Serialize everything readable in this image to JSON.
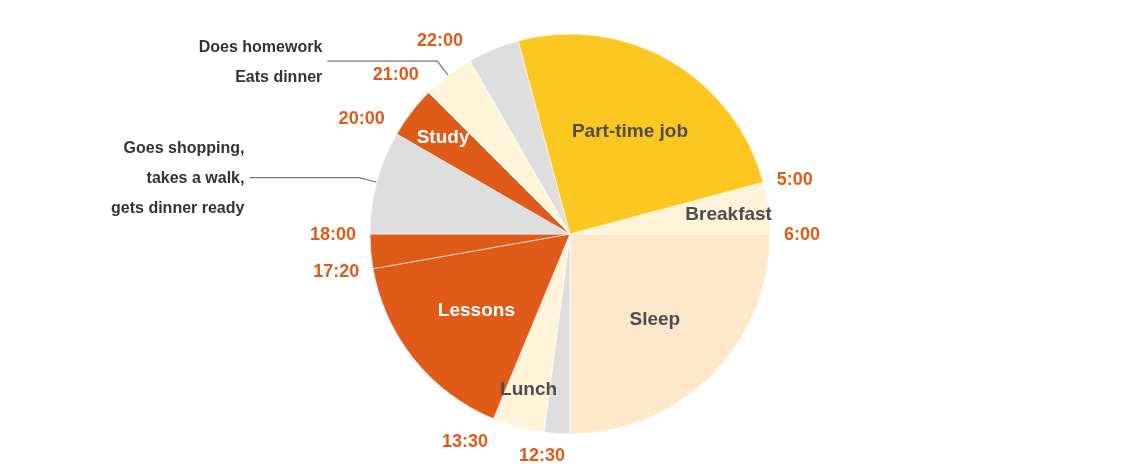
{
  "chart_data": {
    "type": "pie",
    "categories": [
      "Breakfast",
      "Sleep",
      null,
      "Lunch",
      "Lessons",
      null,
      "Goes shopping,\ntakes a walk,\ngets dinner ready",
      "Study",
      "Does homework\nEats dinner",
      null,
      "Part-time job"
    ],
    "values": [
      4.1667,
      25,
      2.0833,
      4.1667,
      15.9722,
      2.7778,
      8.3333,
      4.1667,
      4.1667,
      4.1667,
      25
    ],
    "colors": [
      "#fff4d9",
      "#fee8cc",
      "#dedede",
      "#fff4d9",
      "#e05a1a",
      "#e05a1a",
      "#dedede",
      "#e05a1a",
      "#fff4d9",
      "#dedede",
      "#fcc720"
    ],
    "annotations": [
      "5:00",
      "6:00",
      "12:30",
      "13:30",
      "17:20",
      "18:00",
      "20:00",
      "21:00",
      "22:00"
    ],
    "legend": false
  }
}
